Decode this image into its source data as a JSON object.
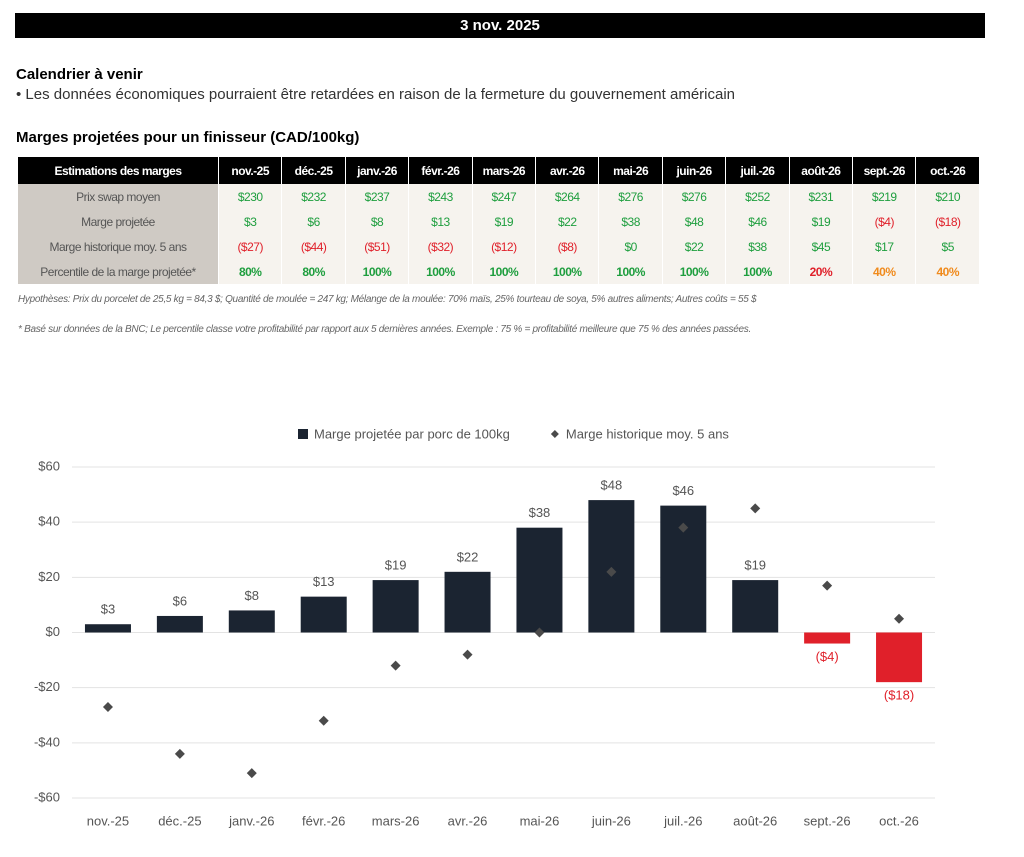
{
  "header": {
    "date": "3 nov. 2025"
  },
  "calendar": {
    "title": "Calendrier à venir",
    "bullet": "• Les données économiques pourraient être retardées en raison de la fermeture du gouvernement américain"
  },
  "table": {
    "title": "Marges projetées pour un finisseur (CAD/100kg)",
    "columns": [
      "Estimations des marges",
      "nov.-25",
      "déc.-25",
      "janv.-26",
      "févr.-26",
      "mars-26",
      "avr.-26",
      "mai-26",
      "juin-26",
      "juil.-26",
      "août-26",
      "sept.-26",
      "oct.-26"
    ],
    "rows": [
      {
        "label": "Prix swap moyen",
        "cells": [
          "$230",
          "$232",
          "$237",
          "$243",
          "$247",
          "$264",
          "$276",
          "$276",
          "$252",
          "$231",
          "$219",
          "$210"
        ],
        "colors": [
          "#1e9e3e",
          "#1e9e3e",
          "#1e9e3e",
          "#1e9e3e",
          "#1e9e3e",
          "#1e9e3e",
          "#1e9e3e",
          "#1e9e3e",
          "#1e9e3e",
          "#1e9e3e",
          "#1e9e3e",
          "#1e9e3e"
        ]
      },
      {
        "label": "Marge projetée",
        "cells": [
          "$3",
          "$6",
          "$8",
          "$13",
          "$19",
          "$22",
          "$38",
          "$48",
          "$46",
          "$19",
          "($4)",
          "($18)"
        ],
        "colors": [
          "#1e9e3e",
          "#1e9e3e",
          "#1e9e3e",
          "#1e9e3e",
          "#1e9e3e",
          "#1e9e3e",
          "#1e9e3e",
          "#1e9e3e",
          "#1e9e3e",
          "#1e9e3e",
          "#e0202a",
          "#e0202a"
        ]
      },
      {
        "label": "Marge historique moy. 5 ans",
        "cells": [
          "($27)",
          "($44)",
          "($51)",
          "($32)",
          "($12)",
          "($8)",
          "$0",
          "$22",
          "$38",
          "$45",
          "$17",
          "$5"
        ],
        "colors": [
          "#e0202a",
          "#e0202a",
          "#e0202a",
          "#e0202a",
          "#e0202a",
          "#e0202a",
          "#1e9e3e",
          "#1e9e3e",
          "#1e9e3e",
          "#1e9e3e",
          "#1e9e3e",
          "#1e9e3e"
        ]
      },
      {
        "label": "Percentile de la marge projetée*",
        "cells": [
          "80%",
          "80%",
          "100%",
          "100%",
          "100%",
          "100%",
          "100%",
          "100%",
          "100%",
          "20%",
          "40%",
          "40%"
        ],
        "colors": [
          "#1e9e3e",
          "#1e9e3e",
          "#1e9e3e",
          "#1e9e3e",
          "#1e9e3e",
          "#1e9e3e",
          "#1e9e3e",
          "#1e9e3e",
          "#1e9e3e",
          "#e0202a",
          "#f08a1c",
          "#f08a1c"
        ]
      }
    ]
  },
  "notes": [
    "Hypothèses: Prix du porcelet de 25,5 kg = 84,3 $; Quantité de moulée = 247 kg; Mélange de la moulée: 70% maïs, 25% tourteau de soya, 5% autres aliments; Autres coûts = 55 $",
    "* Basé sur données de la BNC; Le percentile classe votre profitabilité par rapport aux 5 dernières années. Exemple : 75 % = profitabilité meilleure que 75 % des années passées."
  ],
  "chart_data": {
    "type": "bar",
    "categories": [
      "nov.-25",
      "déc.-25",
      "janv.-26",
      "févr.-26",
      "mars-26",
      "avr.-26",
      "mai-26",
      "juin-26",
      "juil.-26",
      "août-26",
      "sept.-26",
      "oct.-26"
    ],
    "series": [
      {
        "name": "Marge projetée par porc de 100kg",
        "color": "#1b2431",
        "negative_color": "#e0202a",
        "values": [
          3,
          6,
          8,
          13,
          19,
          22,
          38,
          48,
          46,
          19,
          -4,
          -18
        ],
        "value_labels": [
          "$3",
          "$6",
          "$8",
          "$13",
          "$19",
          "$22",
          "$38",
          "$48",
          "$46",
          "$19",
          "($4)",
          "($18)"
        ]
      },
      {
        "name": "Marge historique moy. 5 ans",
        "type": "scatter",
        "marker": "diamond",
        "color": "#4a4a4a",
        "values": [
          -27,
          -44,
          -51,
          -32,
          -12,
          -8,
          0,
          22,
          38,
          45,
          17,
          5
        ]
      }
    ],
    "ylim": [
      -60,
      60
    ],
    "yticks": [
      {
        "value": -60,
        "label": "-$60"
      },
      {
        "value": -40,
        "label": "-$40"
      },
      {
        "value": -20,
        "label": "-$20"
      },
      {
        "value": 0,
        "label": "$0"
      },
      {
        "value": 20,
        "label": "$20"
      },
      {
        "value": 40,
        "label": "$40"
      },
      {
        "value": 60,
        "label": "$60"
      }
    ],
    "grid": true,
    "legend": "top"
  }
}
